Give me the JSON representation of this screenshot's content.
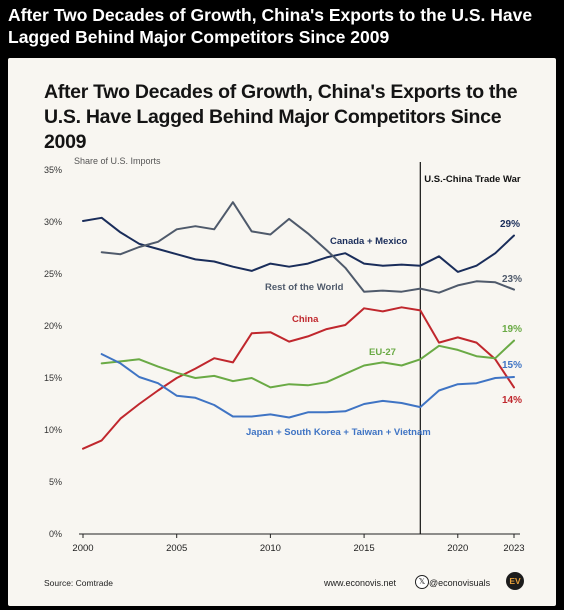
{
  "post": {
    "title": "After Two Decades of Growth, China's Exports to the U.S. Have Lagged Behind Major Competitors Since 2009"
  },
  "chart_data": {
    "type": "line",
    "title": "After Two Decades of Growth, China's Exports to the U.S. Have Lagged Behind Major Competitors Since 2009",
    "ylabel": "Share of U.S. Imports",
    "xlabel": "",
    "x": [
      2000,
      2001,
      2002,
      2003,
      2004,
      2005,
      2006,
      2007,
      2008,
      2009,
      2010,
      2011,
      2012,
      2013,
      2014,
      2015,
      2016,
      2017,
      2018,
      2019,
      2020,
      2021,
      2022,
      2023
    ],
    "xlim": [
      2000,
      2023
    ],
    "ylim": [
      0,
      35
    ],
    "x_ticks": [
      "2000",
      "2005",
      "2010",
      "2015",
      "2020",
      "2023"
    ],
    "x_tick_values": [
      2000,
      2005,
      2010,
      2015,
      2020,
      2023
    ],
    "y_ticks": [
      "0%",
      "5%",
      "10%",
      "15%",
      "20%",
      "25%",
      "30%",
      "35%"
    ],
    "y_tick_values": [
      0,
      5,
      10,
      15,
      20,
      25,
      30,
      35
    ],
    "grid": false,
    "annotation": {
      "label": "U.S.-China Trade War",
      "x": 2018
    },
    "series": [
      {
        "name": "Canada + Mexico",
        "color": "#1a2d5a",
        "values": [
          30.1,
          30.4,
          29.0,
          27.9,
          27.4,
          26.9,
          26.4,
          26.2,
          25.7,
          25.3,
          26.0,
          25.7,
          26.0,
          26.6,
          27.0,
          26.0,
          25.8,
          25.9,
          25.8,
          26.7,
          25.2,
          25.8,
          27.0,
          28.7
        ],
        "end_label": "29%"
      },
      {
        "name": "Rest of the World",
        "color": "#4f5a6b",
        "start_index": 1,
        "values": [
          null,
          27.1,
          26.9,
          27.6,
          28.1,
          29.3,
          29.6,
          29.3,
          31.9,
          29.1,
          28.8,
          30.3,
          28.9,
          27.3,
          25.6,
          23.3,
          23.4,
          23.3,
          23.6,
          23.2,
          23.9,
          24.3,
          24.2,
          23.5
        ],
        "end_label": "23%"
      },
      {
        "name": "China",
        "color": "#c0272d",
        "values": [
          8.2,
          9.0,
          11.1,
          12.5,
          13.8,
          15.0,
          15.9,
          16.9,
          16.5,
          19.3,
          19.4,
          18.5,
          19.0,
          19.7,
          20.1,
          21.7,
          21.4,
          21.8,
          21.5,
          18.4,
          18.9,
          18.4,
          16.8,
          14.1
        ],
        "end_label": "14%"
      },
      {
        "name": "EU-27",
        "color": "#6aaa45",
        "values": [
          null,
          16.4,
          16.6,
          16.8,
          16.1,
          15.5,
          15.0,
          15.2,
          14.7,
          15.0,
          14.1,
          14.4,
          14.3,
          14.6,
          15.4,
          16.2,
          16.5,
          16.2,
          16.8,
          18.1,
          17.7,
          17.1,
          16.9,
          18.6
        ],
        "end_label": "19%"
      },
      {
        "name": "Japan + South Korea + Taiwan + Vietnam",
        "color": "#3f74c4",
        "values": [
          null,
          17.3,
          16.4,
          15.1,
          14.5,
          13.3,
          13.1,
          12.4,
          11.3,
          11.3,
          11.5,
          11.2,
          11.7,
          11.7,
          11.8,
          12.5,
          12.8,
          12.6,
          12.2,
          13.8,
          14.4,
          14.5,
          15.0,
          15.1
        ],
        "end_label": "15%"
      }
    ]
  },
  "footer": {
    "source": "Source: Comtrade",
    "site": "www.econovis.net",
    "handle": "@econovisuals",
    "logo_text": "EV"
  },
  "colors": {
    "background": "#f8f6f1",
    "page": "#000000",
    "axis": "#222222"
  }
}
